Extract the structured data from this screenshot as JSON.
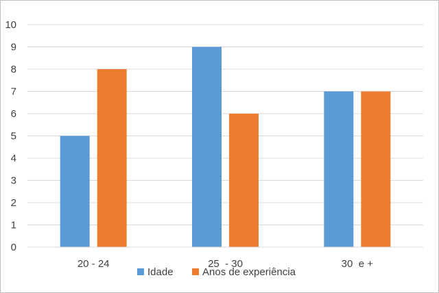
{
  "chart_data": {
    "type": "bar",
    "title": "",
    "xlabel": "",
    "ylabel": "",
    "categories": [
      "20 - 24",
      "25  - 30",
      "30  e +"
    ],
    "series": [
      {
        "name": "Idade",
        "color": "#5b9bd5",
        "values": [
          5,
          9,
          7
        ]
      },
      {
        "name": "Anos de experiência",
        "color": "#ed7d31",
        "values": [
          8,
          6,
          7
        ]
      }
    ],
    "ylim": [
      0,
      10
    ],
    "yticks": [
      "0",
      "1",
      "2",
      "3",
      "4",
      "5",
      "6",
      "7",
      "8",
      "9",
      "10"
    ],
    "grid": true,
    "legend": "bottom"
  }
}
